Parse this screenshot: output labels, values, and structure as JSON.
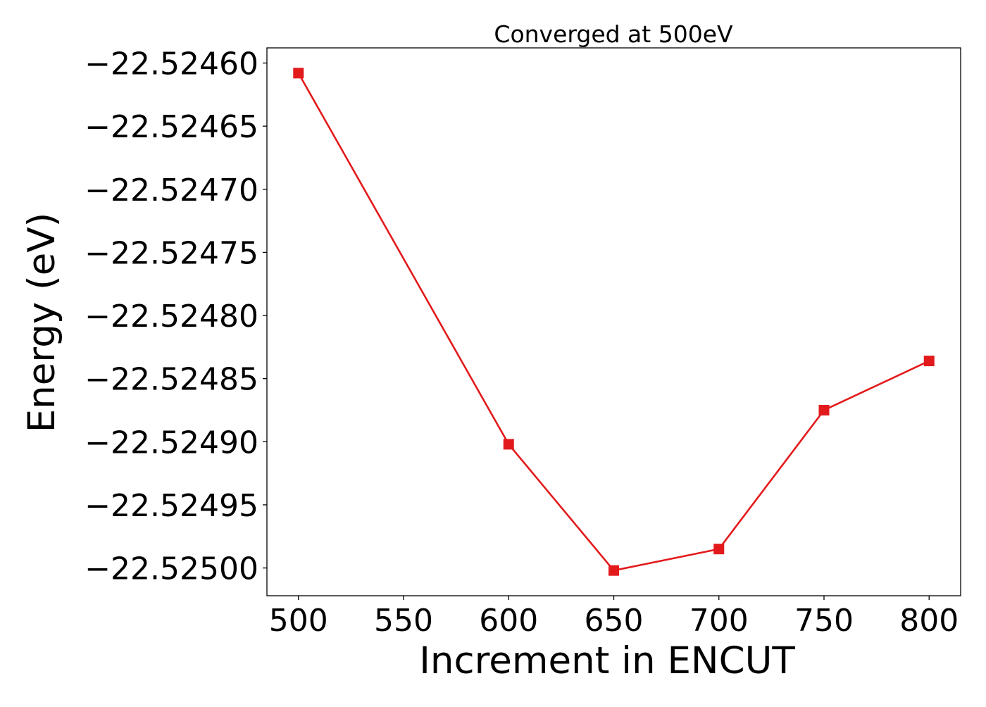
{
  "chart_data": {
    "type": "line",
    "title": "Converged at 500eV",
    "xlabel": "Increment in ENCUT",
    "ylabel": "Energy (eV)",
    "x": [
      500,
      600,
      650,
      700,
      750,
      800
    ],
    "series": [
      {
        "values": [
          -22.524608,
          -22.524902,
          -22.525002,
          -22.524985,
          -22.524875,
          -22.524836
        ],
        "color": "#e31a1c",
        "marker": "square"
      }
    ],
    "xlim": [
      485,
      815
    ],
    "ylim": [
      -22.525022,
      -22.524588
    ],
    "xticks": [
      500,
      550,
      600,
      650,
      700,
      750,
      800
    ],
    "xtick_labels": [
      "500",
      "550",
      "600",
      "650",
      "700",
      "750",
      "800"
    ],
    "yticks": [
      -22.5246,
      -22.52465,
      -22.5247,
      -22.52475,
      -22.5248,
      -22.52485,
      -22.5249,
      -22.52495,
      -22.525
    ],
    "ytick_labels": [
      "−22.52460",
      "−22.52465",
      "−22.52470",
      "−22.52475",
      "−22.52480",
      "−22.52485",
      "−22.52490",
      "−22.52495",
      "−22.52500"
    ],
    "grid": false,
    "legend": "none"
  }
}
